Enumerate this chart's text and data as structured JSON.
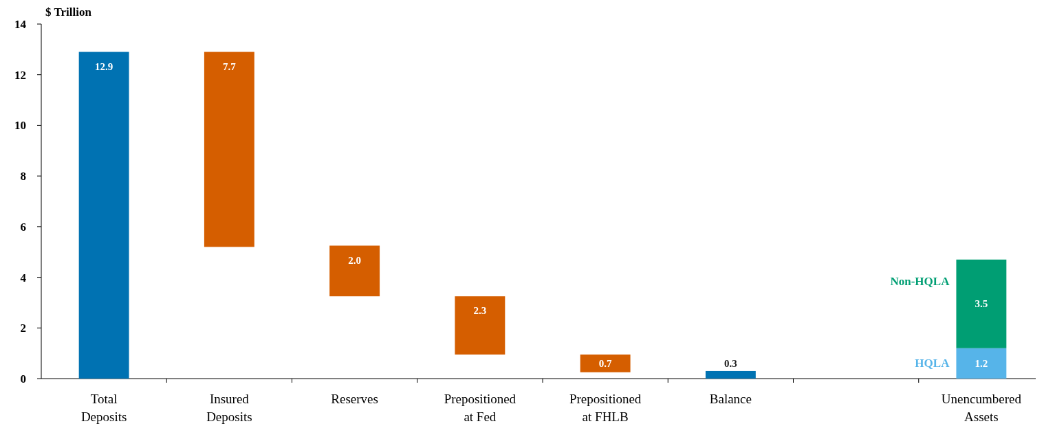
{
  "chart_data": {
    "type": "bar",
    "ylabel": "$ Trillion",
    "categories": [
      "Total\nDeposits",
      "Insured\nDeposits",
      "Reserves",
      "Prepositioned\nat Fed",
      "Prepositioned\nat FHLB",
      "Balance",
      null,
      "Unencumbered\nAssets"
    ],
    "series": [
      {
        "values": [
          12.9,
          7.7,
          2.0,
          2.3,
          0.7,
          0.3,
          null,
          null
        ],
        "base": [
          0,
          5.2,
          3.25,
          0.95,
          0.25,
          0,
          null,
          null
        ],
        "colors": [
          "#0072b2",
          "#d55e00",
          "#d55e00",
          "#d55e00",
          "#d55e00",
          "#0072b2",
          null,
          null
        ],
        "value_labels": [
          "12.9",
          "7.7",
          "2.0",
          "2.3",
          "0.7",
          "0.3",
          null,
          null
        ]
      },
      {
        "name": "HQLA",
        "color": "#56b4e9",
        "values": [
          null,
          null,
          null,
          null,
          null,
          null,
          null,
          1.2
        ],
        "base": [
          null,
          null,
          null,
          null,
          null,
          null,
          null,
          0
        ],
        "value_labels": [
          null,
          null,
          null,
          null,
          null,
          null,
          null,
          "1.2"
        ]
      },
      {
        "name": "Non-HQLA",
        "color": "#009e73",
        "values": [
          null,
          null,
          null,
          null,
          null,
          null,
          null,
          3.5
        ],
        "base": [
          null,
          null,
          null,
          null,
          null,
          null,
          null,
          1.2
        ],
        "value_labels": [
          null,
          null,
          null,
          null,
          null,
          null,
          null,
          "3.5"
        ]
      }
    ],
    "ylim": [
      0,
      14
    ],
    "yticks": [
      0,
      2,
      4,
      6,
      8,
      10,
      12,
      14
    ]
  }
}
